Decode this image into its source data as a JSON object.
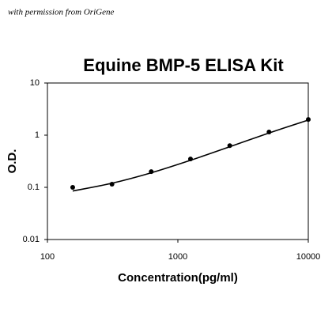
{
  "chart_data": {
    "type": "scatter",
    "watermark": "with permission from OriGene",
    "title": "Equine BMP-5 ELISA Kit",
    "xlabel": "Concentration(pg/ml)",
    "ylabel": "O.D.",
    "x": [
      156.25,
      312.5,
      625,
      1250,
      2500,
      5000,
      10000
    ],
    "series": [
      {
        "style": "marker",
        "color": "#000000",
        "values": [
          0.1,
          0.115,
          0.2,
          0.35,
          0.63,
          1.15,
          2.0
        ]
      },
      {
        "style": "line",
        "color": "#000000",
        "values": [
          0.085,
          0.12,
          0.19,
          0.33,
          0.6,
          1.1,
          1.95
        ]
      }
    ],
    "xlog": true,
    "ylog": true,
    "xlim": [
      100,
      10000
    ],
    "xticks": [
      100,
      1000,
      10000
    ],
    "ylim": [
      0.01,
      10
    ],
    "yticks": [
      0.01,
      0.1,
      1,
      10
    ]
  }
}
